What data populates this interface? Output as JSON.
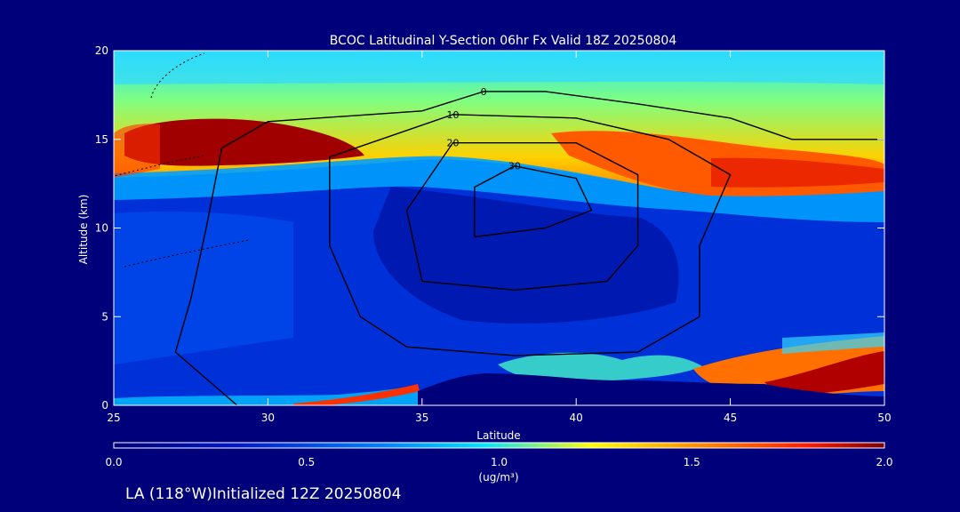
{
  "chart_data": {
    "type": "heatmap",
    "title": "BCOC Latitudinal Y-Section 06hr  Fx Valid 18Z 20250804",
    "xlabel": "Latitude",
    "ylabel": "Altitude (km)",
    "xlim": [
      25,
      50
    ],
    "ylim": [
      0,
      20
    ],
    "x_ticks": [
      25,
      30,
      35,
      40,
      45,
      50
    ],
    "y_ticks": [
      0,
      5,
      10,
      15,
      20
    ],
    "colorbar": {
      "range": [
        0.0,
        2.0
      ],
      "ticks": [
        "0.0",
        "0.5",
        "1.0",
        "1.5",
        "2.0"
      ],
      "unit": "(ug/m³)"
    },
    "field_regions": [
      {
        "name": "upper-layer",
        "lat": [
          25,
          50
        ],
        "alt": [
          14,
          20
        ],
        "value": 1.0
      },
      {
        "name": "high-core-west",
        "lat": [
          25,
          32
        ],
        "alt": [
          14.3,
          16
        ],
        "value": 2.0
      },
      {
        "name": "high-core-east",
        "lat": [
          40,
          50
        ],
        "alt": [
          12,
          15
        ],
        "value": 1.6
      },
      {
        "name": "mid-troposphere",
        "lat": [
          25,
          50
        ],
        "alt": [
          3,
          12
        ],
        "value": 0.3
      },
      {
        "name": "low-layer-east",
        "lat": [
          43,
          50
        ],
        "alt": [
          0.5,
          3
        ],
        "value": 1.8
      }
    ],
    "contours": [
      {
        "label": "0",
        "points": [
          [
            29,
            0
          ],
          [
            27,
            3
          ],
          [
            27.5,
            6
          ],
          [
            28,
            10
          ],
          [
            28.5,
            14.5
          ],
          [
            30,
            16
          ],
          [
            35,
            16.6
          ],
          [
            37,
            17.7
          ],
          [
            39,
            17.7
          ],
          [
            42,
            17
          ],
          [
            45,
            16.2
          ],
          [
            47,
            15
          ],
          [
            50,
            15
          ]
        ]
      },
      {
        "label": "10",
        "points": [
          [
            33,
            5
          ],
          [
            32,
            9
          ],
          [
            32,
            14
          ],
          [
            36,
            16.4
          ],
          [
            40,
            16.2
          ],
          [
            43,
            15
          ],
          [
            45,
            13
          ],
          [
            44,
            9
          ],
          [
            44,
            5
          ],
          [
            42,
            3
          ],
          [
            38,
            2.8
          ],
          [
            34.5,
            3.3
          ],
          [
            33,
            5
          ]
        ]
      },
      {
        "label": "20",
        "points": [
          [
            35,
            7
          ],
          [
            34.5,
            11
          ],
          [
            36,
            14.8
          ],
          [
            40,
            14.8
          ],
          [
            42,
            13
          ],
          [
            42,
            9
          ],
          [
            41,
            7
          ],
          [
            38,
            6.5
          ],
          [
            35,
            7
          ]
        ]
      },
      {
        "label": "30",
        "points": [
          [
            36.7,
            9.5
          ],
          [
            36.7,
            12.3
          ],
          [
            38,
            13.5
          ],
          [
            40,
            12.8
          ],
          [
            40.5,
            11
          ],
          [
            39,
            10
          ],
          [
            36.7,
            9.5
          ]
        ]
      }
    ]
  }
}
